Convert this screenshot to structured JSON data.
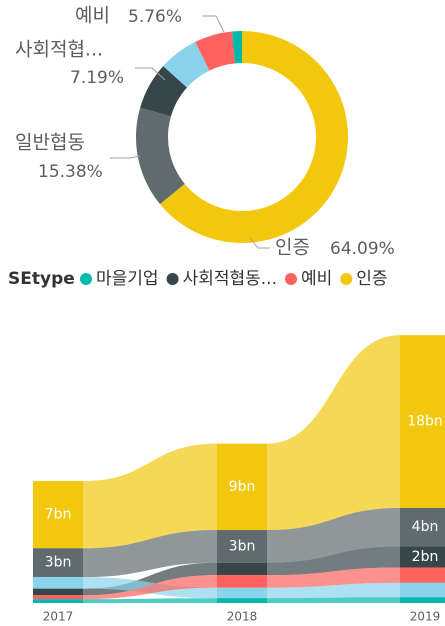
{
  "chart_data": [
    {
      "type": "donut",
      "categories": [
        "인증",
        "일반협동",
        "사회적협...",
        null,
        "예비",
        null
      ],
      "values": [
        64.09,
        15.38,
        7.19,
        6.08,
        5.76,
        1.5
      ],
      "value_labels": [
        "64.09%",
        "15.38%",
        "7.19%",
        null,
        "5.76%",
        null
      ],
      "colors": [
        "#F2C80F",
        "#5F6B6D",
        "#374649",
        "#8AD4EB",
        "#FD625E",
        "#01B8AA"
      ],
      "legend_title": "SEtype",
      "legend": [
        {
          "name": "마을기업",
          "color": "#01B8AA"
        },
        {
          "name": "사회적협동...",
          "color": "#374649"
        },
        {
          "name": "예비",
          "color": "#FD625E"
        },
        {
          "name": "인증",
          "color": "#F2C80F"
        }
      ]
    },
    {
      "type": "ribbon",
      "categories": [
        "2017",
        "2018",
        "2019"
      ],
      "series": [
        {
          "color": "#F2C80F",
          "values": [
            7,
            9,
            18
          ],
          "value_labels": [
            "7bn",
            "9bn",
            "18bn"
          ]
        },
        {
          "color": "#5F6B6D",
          "values": [
            3,
            3.4,
            4
          ],
          "value_labels": [
            "3bn",
            "3bn",
            "4bn"
          ]
        },
        {
          "color": "#374649",
          "values": [
            0.7,
            1.3,
            2.2
          ],
          "value_labels": [
            null,
            null,
            "2bn"
          ]
        },
        {
          "color": "#8AD4EB",
          "values": [
            1.2,
            1.1,
            1.5
          ]
        },
        {
          "color": "#FD625E",
          "values": [
            0.4,
            1.3,
            1.6
          ]
        },
        {
          "color": "#01B8AA",
          "values": [
            0.4,
            0.5,
            0.6
          ]
        }
      ]
    }
  ]
}
